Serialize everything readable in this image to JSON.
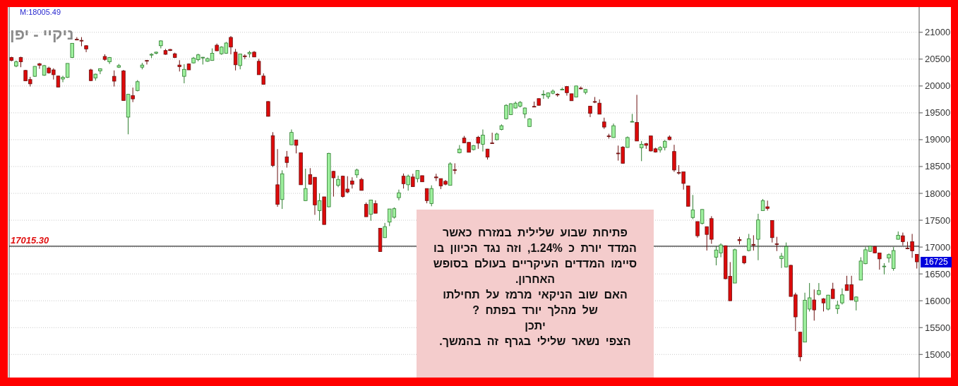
{
  "chart_data": {
    "type": "candlestick",
    "title": "ניקיי - יפן",
    "categories": [
      null,
      null,
      null,
      null,
      null,
      null,
      null,
      null,
      null,
      null,
      null,
      null,
      null,
      null,
      null,
      null,
      null,
      null,
      null,
      null,
      null,
      null,
      null,
      null,
      null,
      null,
      null,
      null,
      null,
      null,
      null,
      null,
      null,
      null,
      null,
      null,
      null,
      null,
      null,
      null,
      null,
      null,
      null,
      null,
      null,
      null,
      null,
      null,
      null,
      null,
      null,
      null,
      null,
      null,
      null,
      null,
      null,
      null,
      null,
      null,
      null,
      null,
      null,
      null,
      null,
      null,
      null,
      null,
      null,
      null,
      null,
      null,
      null,
      null,
      null,
      null,
      null,
      null,
      null,
      null,
      null,
      null,
      null,
      null,
      null,
      null,
      null,
      null,
      null,
      null,
      null,
      null,
      null,
      null,
      null,
      null,
      null,
      null,
      null,
      null,
      null,
      null,
      null,
      null,
      null,
      null,
      null,
      null,
      null,
      null,
      null,
      null,
      null,
      null,
      null,
      null,
      null,
      null,
      null,
      null,
      null,
      null,
      null,
      null,
      null,
      null,
      null,
      null,
      null,
      null,
      null,
      null,
      null,
      null,
      null,
      null,
      null,
      null,
      null,
      null,
      null,
      null,
      null,
      null,
      null,
      null,
      null,
      null,
      null,
      null,
      null,
      null,
      null,
      null,
      null,
      null,
      null,
      null,
      null,
      null,
      null,
      null,
      null,
      null,
      null,
      null,
      null,
      null,
      null,
      null,
      null,
      null,
      null,
      null,
      null,
      null,
      null,
      null,
      null,
      null,
      null,
      null,
      null,
      null,
      null,
      null,
      null,
      null,
      null,
      null,
      null,
      null,
      null,
      null,
      null
    ],
    "ohlc": [
      [
        20530,
        20545,
        20460,
        20475
      ],
      [
        20370,
        20475,
        20350,
        20450
      ],
      [
        20530,
        20545,
        20350,
        20450
      ],
      [
        20290,
        20300,
        20090,
        20095
      ],
      [
        20120,
        20170,
        19990,
        20040
      ],
      [
        20180,
        20370,
        20170,
        20365
      ],
      [
        20415,
        20430,
        20320,
        20385
      ],
      [
        20200,
        20390,
        20190,
        20380
      ],
      [
        20335,
        20360,
        20230,
        20245
      ],
      [
        20300,
        20330,
        20120,
        20210
      ],
      [
        20185,
        20190,
        19980,
        19980
      ],
      [
        20130,
        20190,
        20070,
        20160
      ],
      [
        20160,
        20420,
        20150,
        20420
      ],
      [
        20530,
        20800,
        20520,
        20795
      ],
      [
        20870,
        20910,
        20850,
        20860
      ],
      [
        20850,
        20910,
        20740,
        20840
      ],
      [
        20750,
        20760,
        20630,
        20690
      ],
      [
        20300,
        20320,
        20090,
        20100
      ],
      [
        20150,
        20230,
        20100,
        20220
      ],
      [
        20280,
        20330,
        20220,
        20320
      ],
      [
        20550,
        20590,
        20470,
        20495
      ],
      [
        20450,
        20540,
        20410,
        20530
      ],
      [
        20180,
        20290,
        19990,
        20090
      ],
      [
        20350,
        20410,
        20335,
        20380
      ],
      [
        20280,
        20300,
        19730,
        19730
      ],
      [
        19420,
        19850,
        19100,
        19845
      ],
      [
        19820,
        19970,
        19700,
        19760
      ],
      [
        19915,
        20110,
        19900,
        20080
      ],
      [
        20350,
        20430,
        20310,
        20390
      ],
      [
        20475,
        20485,
        20400,
        20470
      ],
      [
        20575,
        20610,
        20520,
        20590
      ],
      [
        20610,
        20640,
        20590,
        20630
      ],
      [
        20750,
        20850,
        20700,
        20840
      ],
      [
        20660,
        20690,
        20580,
        20590
      ],
      [
        20680,
        20690,
        20650,
        20660
      ],
      [
        20600,
        20620,
        20520,
        20530
      ],
      [
        20390,
        20480,
        20270,
        20360
      ],
      [
        20180,
        20405,
        20050,
        20310
      ],
      [
        20410,
        20420,
        20300,
        20300
      ],
      [
        20430,
        20540,
        20420,
        20520
      ],
      [
        20490,
        20600,
        20460,
        20580
      ],
      [
        20530,
        20540,
        20400,
        20535
      ],
      [
        20460,
        20530,
        20450,
        20510
      ],
      [
        20475,
        20700,
        20470,
        20610
      ],
      [
        20760,
        20790,
        20650,
        20655
      ],
      [
        20600,
        20740,
        20580,
        20725
      ],
      [
        20610,
        20820,
        20600,
        20800
      ],
      [
        20905,
        20930,
        20590,
        20725
      ],
      [
        20630,
        20690,
        20290,
        20395
      ],
      [
        20380,
        20600,
        20310,
        20595
      ],
      [
        20560,
        20590,
        20500,
        20555
      ],
      [
        20600,
        20655,
        20530,
        20625
      ],
      [
        20630,
        20650,
        20540,
        20540
      ],
      [
        20460,
        20505,
        20210,
        20210
      ],
      [
        20185,
        20235,
        20030,
        20030
      ],
      [
        19710,
        19720,
        19430,
        19435
      ],
      [
        19075,
        19140,
        18490,
        18520
      ],
      [
        18160,
        18825,
        17750,
        17795
      ],
      [
        17885,
        18430,
        17710,
        18365
      ],
      [
        18680,
        18790,
        18480,
        18575
      ],
      [
        18905,
        19190,
        18900,
        19135
      ],
      [
        18995,
        19000,
        18745,
        18895
      ],
      [
        18755,
        18760,
        18160,
        18160
      ],
      [
        17865,
        18460,
        17860,
        18090
      ],
      [
        18350,
        18470,
        18160,
        18170
      ],
      [
        18300,
        18300,
        17600,
        17785
      ],
      [
        17680,
        18000,
        17490,
        17865
      ],
      [
        17935,
        17935,
        17420,
        17420
      ],
      [
        17750,
        18755,
        17740,
        18745
      ],
      [
        18410,
        18420,
        17940,
        18290
      ],
      [
        18150,
        18330,
        18115,
        18260
      ],
      [
        18320,
        18330,
        17920,
        17940
      ],
      [
        18080,
        18320,
        18000,
        18025
      ],
      [
        18230,
        18300,
        18090,
        18170
      ],
      [
        18345,
        18460,
        18290,
        18435
      ],
      [
        18260,
        18290,
        18055,
        18055
      ],
      [
        17795,
        17830,
        17565,
        17565
      ],
      [
        17610,
        17880,
        17490,
        17875
      ],
      [
        17810,
        17870,
        17630,
        17630
      ],
      [
        17350,
        17350,
        16915,
        16915
      ],
      [
        17175,
        17450,
        17170,
        17380
      ],
      [
        17465,
        17710,
        17390,
        17710
      ],
      [
        17555,
        17740,
        17530,
        17715
      ],
      [
        17920,
        18070,
        17870,
        18010
      ],
      [
        18320,
        18370,
        18090,
        18180
      ],
      [
        18160,
        18350,
        18050,
        18320
      ],
      [
        18305,
        18365,
        18125,
        18125
      ],
      [
        18275,
        18425,
        18205,
        18425
      ],
      [
        18330,
        18330,
        18215,
        18215
      ],
      [
        18090,
        18090,
        17815,
        17865
      ],
      [
        17810,
        18150,
        17760,
        18090
      ],
      [
        18305,
        18365,
        18230,
        18290
      ],
      [
        18275,
        18275,
        18080,
        18140
      ],
      [
        18225,
        18250,
        18150,
        18170
      ],
      [
        18150,
        18580,
        18150,
        18550
      ],
      [
        18440,
        18560,
        18360,
        18435
      ],
      [
        18755,
        18900,
        18745,
        18825
      ],
      [
        19030,
        19070,
        18940,
        18940
      ],
      [
        18950,
        18950,
        18765,
        18765
      ],
      [
        18815,
        18900,
        18800,
        18890
      ],
      [
        19045,
        19070,
        18830,
        18935
      ],
      [
        18915,
        19190,
        18780,
        19085
      ],
      [
        18825,
        18830,
        18630,
        18675
      ],
      [
        18940,
        19130,
        18925,
        18935
      ],
      [
        19000,
        19130,
        18985,
        19105
      ],
      [
        19190,
        19285,
        19175,
        19260
      ],
      [
        19390,
        19660,
        19375,
        19640
      ],
      [
        19465,
        19675,
        19460,
        19670
      ],
      [
        19590,
        19710,
        19580,
        19680
      ],
      [
        19625,
        19720,
        19600,
        19695
      ],
      [
        19480,
        19600,
        19400,
        19590
      ],
      [
        19245,
        19400,
        19240,
        19385
      ],
      [
        19620,
        19710,
        19610,
        19615
      ],
      [
        19765,
        19765,
        19635,
        19640
      ],
      [
        19835,
        19920,
        19760,
        19845
      ],
      [
        19800,
        19880,
        19760,
        19870
      ],
      [
        19865,
        19935,
        19845,
        19905
      ],
      [
        19845,
        19865,
        19800,
        19840
      ],
      [
        19930,
        19970,
        19920,
        19940
      ],
      [
        19990,
        19995,
        19820,
        19875
      ],
      [
        19855,
        19855,
        19725,
        19725
      ],
      [
        19795,
        20005,
        19790,
        20000
      ],
      [
        19960,
        19990,
        19935,
        19950
      ],
      [
        19880,
        19945,
        19845,
        19935
      ],
      [
        19625,
        19625,
        19420,
        19490
      ],
      [
        19710,
        19795,
        19680,
        19705
      ],
      [
        19680,
        19750,
        19475,
        19475
      ],
      [
        19330,
        19410,
        19200,
        19235
      ],
      [
        19070,
        19110,
        19020,
        19060
      ],
      [
        19040,
        19300,
        19035,
        19260
      ],
      [
        18750,
        18890,
        18610,
        18740
      ],
      [
        18860,
        18880,
        18560,
        18560
      ],
      [
        18855,
        19060,
        18850,
        19040
      ],
      [
        19340,
        19480,
        19325,
        19340
      ],
      [
        19320,
        19835,
        18975,
        18975
      ],
      [
        18850,
        18975,
        18600,
        18915
      ],
      [
        18925,
        18940,
        18830,
        18895
      ],
      [
        19070,
        19070,
        18780,
        18790
      ],
      [
        18830,
        18850,
        18760,
        18770
      ],
      [
        18810,
        18880,
        18760,
        18855
      ],
      [
        18855,
        18995,
        18800,
        18970
      ],
      [
        19050,
        19080,
        18990,
        19000
      ],
      [
        18780,
        18905,
        18400,
        18435
      ],
      [
        18390,
        18525,
        18350,
        18385
      ],
      [
        18400,
        18400,
        18070,
        18185
      ],
      [
        18140,
        18140,
        17760,
        17760
      ],
      [
        17550,
        17970,
        17520,
        17690
      ],
      [
        17475,
        17475,
        17175,
        17210
      ],
      [
        17440,
        17705,
        17420,
        17700
      ],
      [
        17380,
        17380,
        16935,
        17235
      ],
      [
        17530,
        17575,
        17060,
        17145
      ],
      [
        16810,
        17015,
        16660,
        16945
      ],
      [
        16890,
        17070,
        16810,
        17040
      ],
      [
        17025,
        17030,
        16400,
        16410
      ],
      [
        16455,
        16720,
        16000,
        16000
      ],
      [
        16330,
        16970,
        16330,
        16950
      ],
      [
        17140,
        17190,
        17050,
        17120
      ],
      [
        16830,
        16840,
        16680,
        16705
      ],
      [
        16935,
        17245,
        16920,
        17155
      ],
      [
        17050,
        17220,
        16935,
        17045
      ],
      [
        17145,
        17620,
        16755,
        17505
      ],
      [
        17680,
        17895,
        17680,
        17865
      ],
      [
        17750,
        17865,
        17680,
        17720
      ],
      [
        17495,
        17500,
        17085,
        17175
      ],
      [
        17060,
        17190,
        16925,
        17050
      ],
      [
        16785,
        16890,
        16610,
        16830
      ],
      [
        16630,
        17085,
        16620,
        17010
      ],
      [
        16660,
        16670,
        16080,
        16080
      ],
      [
        16110,
        16150,
        15435,
        15700
      ],
      [
        15415,
        15415,
        14875,
        14955
      ],
      [
        15230,
        16150,
        15230,
        16010
      ],
      [
        15845,
        16330,
        15800,
        16055
      ],
      [
        16015,
        16210,
        15630,
        15830
      ],
      [
        16120,
        16330,
        16100,
        16190
      ],
      [
        16035,
        16050,
        15800,
        15960
      ],
      [
        15845,
        16110,
        15820,
        16105
      ],
      [
        16215,
        16335,
        16040,
        16040
      ],
      [
        15850,
        16000,
        15755,
        15920
      ],
      [
        15960,
        16230,
        15930,
        16110
      ],
      [
        16300,
        16465,
        16190,
        16190
      ],
      [
        16300,
        16465,
        16015,
        16015
      ],
      [
        15990,
        16080,
        15820,
        16070
      ],
      [
        16385,
        16810,
        16385,
        16740
      ],
      [
        16690,
        17000,
        16680,
        16950
      ],
      [
        16920,
        17020,
        16910,
        17015
      ],
      [
        17010,
        17020,
        16890,
        16890
      ],
      [
        16890,
        16890,
        16580,
        16780
      ],
      [
        16635,
        16700,
        16490,
        16645
      ],
      [
        16795,
        16880,
        16710,
        16860
      ],
      [
        16600,
        17000,
        16560,
        16935
      ],
      [
        17145,
        17290,
        17140,
        17220
      ],
      [
        17210,
        17270,
        17030,
        17100
      ],
      [
        16980,
        17100,
        16960,
        16970
      ],
      [
        17100,
        17245,
        16800,
        16930
      ],
      [
        16865,
        16870,
        16600,
        16725
      ]
    ],
    "ylim": [
      14570,
      21470
    ],
    "yticks": [
      15000,
      15500,
      16000,
      16500,
      17000,
      17500,
      18000,
      18500,
      19000,
      19500,
      20000,
      20500,
      21000
    ],
    "grid": "y",
    "ref_lines": [
      {
        "axis": "y",
        "value": 17015.3,
        "label": "17015.30",
        "color": "#000000"
      }
    ],
    "annotations": [
      "M:18005.49",
      "פתיחת שבוע שלילית במזרח כאשר המדד יורת כ 1.24%, וזה נגד הכיוון בו סיימו המדדים העיקריים בעולם בסופש האחרון.",
      "האם שוב הניקאי מרמז על תחילתו של מהלך יורד בפתח ?",
      "יתכן",
      "הצפי נשאר שלילי בגרף זה בהמשך.",
      {
        "text": "16725",
        "y": 16725
      }
    ]
  }
}
